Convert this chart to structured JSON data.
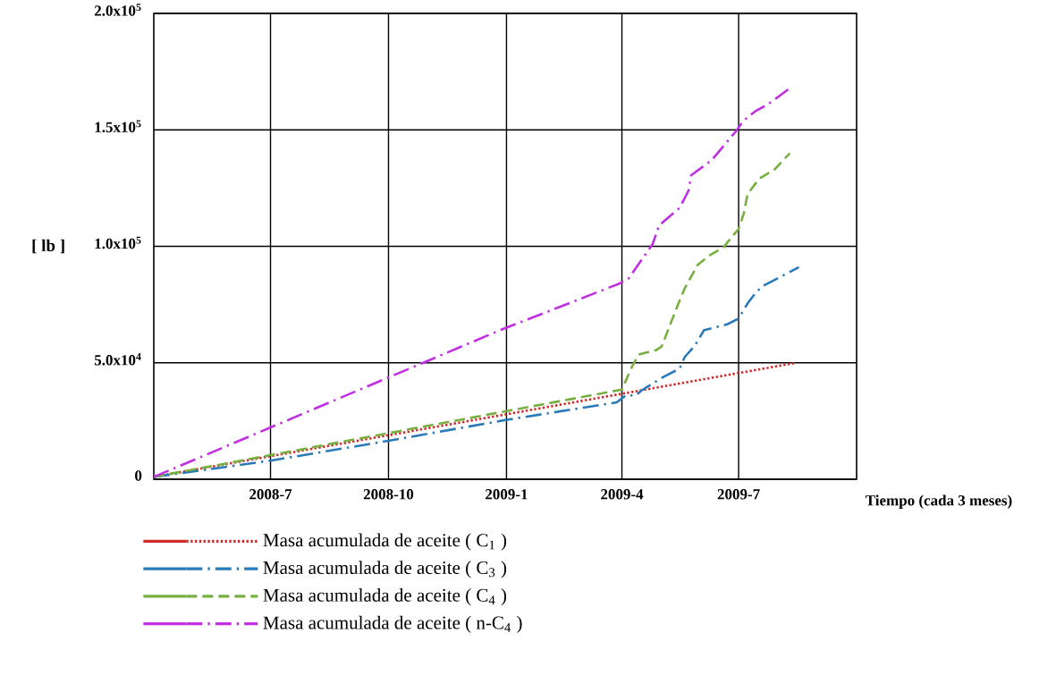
{
  "chart_data": {
    "type": "line",
    "xlabel": "Tiempo (cada 3 meses)",
    "ylabel": "[ lb ]",
    "xlim": [
      "2008-04-01",
      "2009-10-01"
    ],
    "xticks": [
      {
        "value": "2008-07-01",
        "label": "2008-7"
      },
      {
        "value": "2008-10-01",
        "label": "2008-10"
      },
      {
        "value": "2009-01-01",
        "label": "2009-1"
      },
      {
        "value": "2009-04-01",
        "label": "2009-4"
      },
      {
        "value": "2009-07-01",
        "label": "2009-7"
      }
    ],
    "ylim": [
      0,
      200000
    ],
    "yticks": [
      0,
      {
        "value": 50000,
        "label": "5.0x10$^{4}$"
      },
      {
        "value": 100000,
        "label": "1.0x10$^{5}$"
      },
      {
        "value": 150000,
        "label": "1.5x10$^{5}$"
      },
      {
        "value": 200000,
        "label": "2.0x10$^{5}$"
      }
    ],
    "grid": true,
    "legend": "bottom",
    "series": [
      {
        "name": "Masa acumulada de aceite ( C$_{1}$ )",
        "color": "#d02a2a",
        "line_style": "dotted",
        "x": [
          "2008-04-01",
          "2009-08-15"
        ],
        "values": [
          1000,
          50000
        ]
      },
      {
        "name": "Masa acumulada de aceite ( C$_{3}$ )",
        "color": "#2a7ab8",
        "line_style": "dashdot",
        "x": [
          "2008-04-01",
          "2008-07-01",
          "2008-10-01",
          "2009-01-01",
          "2009-03-28",
          "2009-04-04",
          "2009-04-12",
          "2009-04-16",
          "2009-05-02",
          "2009-05-16",
          "2009-05-20",
          "2009-05-28",
          "2009-06-04",
          "2009-06-22",
          "2009-07-01",
          "2009-07-08",
          "2009-07-15",
          "2009-07-20",
          "2009-08-03",
          "2009-08-17"
        ],
        "values": [
          1000,
          8000,
          16500,
          25500,
          33000,
          36000,
          36000,
          38000,
          43500,
          47500,
          52500,
          57500,
          64000,
          66500,
          69000,
          75500,
          80500,
          83000,
          87000,
          91000
        ]
      },
      {
        "name": "Masa acumulada de aceite ( C$_{4}$ )",
        "color": "#77b041",
        "line_style": "dashed",
        "x": [
          "2008-04-01",
          "2009-04-01",
          "2009-04-09",
          "2009-04-14",
          "2009-04-28",
          "2009-05-02",
          "2009-05-14",
          "2009-05-20",
          "2009-05-30",
          "2009-06-08",
          "2009-06-19",
          "2009-07-01",
          "2009-07-05",
          "2009-07-08",
          "2009-07-17",
          "2009-07-29",
          "2009-08-10"
        ],
        "values": [
          1000,
          38500,
          48500,
          53500,
          55500,
          57000,
          74000,
          82000,
          92000,
          96000,
          99500,
          107500,
          114000,
          122500,
          129000,
          133000,
          140000
        ]
      },
      {
        "name": "Masa acumulada de aceite ( n-C$_{4}$ )",
        "color": "#c030e0",
        "line_style": "dashdot",
        "x": [
          "2008-04-01",
          "2008-12-27",
          "2009-03-30",
          "2009-04-06",
          "2009-04-25",
          "2009-04-30",
          "2009-05-16",
          "2009-05-23",
          "2009-05-25",
          "2009-06-10",
          "2009-06-29",
          "2009-07-05",
          "2009-07-14",
          "2009-07-24",
          "2009-08-09"
        ],
        "values": [
          1000,
          64000,
          84000,
          86000,
          101000,
          109000,
          116500,
          124000,
          130500,
          137000,
          149500,
          154000,
          158000,
          161000,
          167500
        ]
      }
    ]
  }
}
